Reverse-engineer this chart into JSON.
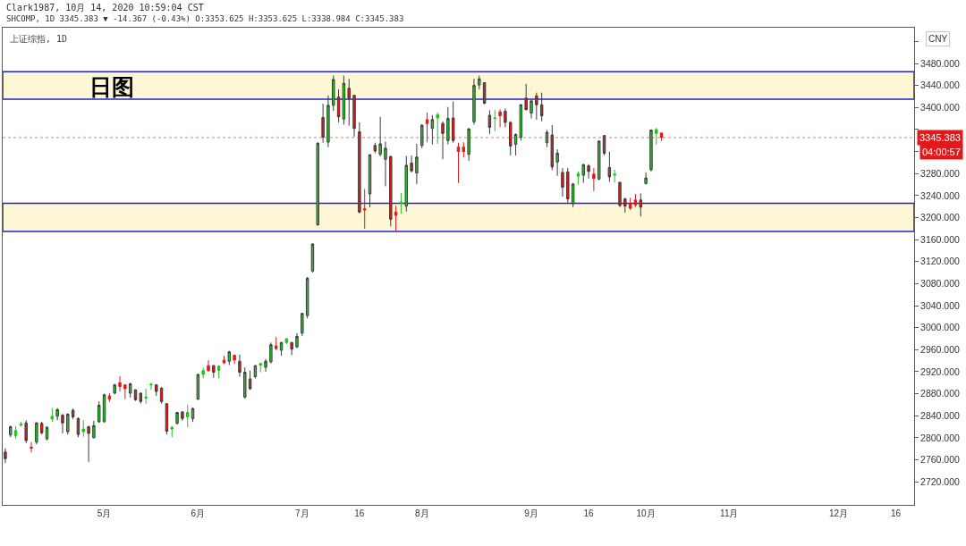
{
  "chart_data": {
    "type": "candlestick",
    "title": "Clark1987, 10月 14, 2020 10:59:04 CST",
    "subtitle": "SHCOMP, 1D 3345.383 ▼ -14.367 (-0.43%) O:3353.625 H:3353.625 L:3338.984 C:3345.383",
    "categories": [
      null,
      null,
      null,
      null,
      null,
      null,
      null,
      null,
      null,
      null,
      null,
      null,
      null,
      null,
      null,
      null,
      null,
      null,
      null,
      "5月",
      null,
      null,
      null,
      null,
      null,
      null,
      null,
      null,
      null,
      null,
      null,
      null,
      null,
      null,
      null,
      null,
      null,
      "6月",
      null,
      null,
      null,
      null,
      null,
      null,
      null,
      null,
      null,
      null,
      null,
      null,
      null,
      null,
      null,
      null,
      null,
      null,
      null,
      "7月",
      null,
      null,
      null,
      null,
      null,
      null,
      null,
      null,
      null,
      null,
      "16",
      null,
      null,
      null,
      null,
      null,
      null,
      null,
      null,
      null,
      null,
      null,
      "8月",
      null,
      null,
      null,
      null,
      null,
      null,
      null,
      null,
      null,
      null,
      null,
      null,
      null,
      null,
      null,
      null,
      null,
      null,
      null,
      null,
      "9月",
      null,
      null,
      null,
      null,
      null,
      null,
      null,
      null,
      null,
      null,
      "16",
      null,
      null,
      null,
      null,
      null,
      null,
      null,
      null,
      null,
      null,
      "10月",
      null,
      null,
      null,
      null,
      null,
      null,
      null,
      null,
      null,
      null,
      null,
      null,
      null,
      null,
      null,
      "11月",
      null,
      null,
      null,
      null,
      null,
      null,
      null,
      null,
      null,
      null,
      null,
      null,
      null,
      null,
      null,
      null,
      null,
      null,
      null,
      null,
      "12月",
      null,
      null,
      null,
      null,
      null,
      null,
      null,
      null,
      null,
      null,
      "16",
      null,
      null,
      null
    ],
    "ohlc": [
      [
        2774,
        2781,
        2754,
        2762
      ],
      [
        2805,
        2822,
        2801,
        2820
      ],
      [
        2804,
        2821,
        2798,
        2813
      ],
      [
        2823,
        2829,
        2820,
        2825
      ],
      [
        2827,
        2832,
        2790,
        2795
      ],
      [
        2783,
        2792,
        2773,
        2781
      ],
      [
        2792,
        2828,
        2788,
        2827
      ],
      [
        2826,
        2829,
        2806,
        2809
      ],
      [
        2798,
        2821,
        2795,
        2819
      ],
      [
        2834,
        2854,
        2829,
        2839
      ],
      [
        2839,
        2854,
        2832,
        2851
      ],
      [
        2841,
        2843,
        2808,
        2827
      ],
      [
        2811,
        2844,
        2806,
        2843
      ],
      [
        2850,
        2853,
        2834,
        2838
      ],
      [
        2835,
        2837,
        2801,
        2806
      ],
      [
        2811,
        2832,
        2802,
        2816
      ],
      [
        2820,
        2822,
        2756,
        2808
      ],
      [
        2800,
        2831,
        2799,
        2822
      ],
      [
        2829,
        2866,
        2827,
        2859
      ],
      [
        2829,
        2880,
        2828,
        2878
      ],
      [
        2876,
        2881,
        2865,
        2870
      ],
      [
        2881,
        2898,
        2879,
        2896
      ],
      [
        2900,
        2912,
        2884,
        2893
      ],
      [
        2896,
        2897,
        2870,
        2889
      ],
      [
        2881,
        2900,
        2873,
        2898
      ],
      [
        2887,
        2888,
        2867,
        2869
      ],
      [
        2881,
        2882,
        2862,
        2866
      ],
      [
        2872,
        2889,
        2862,
        2874
      ],
      [
        2896,
        2900,
        2887,
        2897
      ],
      [
        2896,
        2897,
        2876,
        2884
      ],
      [
        2890,
        2892,
        2862,
        2866
      ],
      [
        2862,
        2863,
        2806,
        2812
      ],
      [
        2816,
        2821,
        2801,
        2819
      ],
      [
        2826,
        2847,
        2824,
        2846
      ],
      [
        2847,
        2848,
        2831,
        2835
      ],
      [
        2838,
        2860,
        2819,
        2846
      ],
      [
        2835,
        2855,
        2829,
        2853
      ],
      [
        2870,
        2916,
        2869,
        2915
      ],
      [
        2915,
        2927,
        2908,
        2922
      ],
      [
        2931,
        2941,
        2920,
        2922
      ],
      [
        2931,
        2932,
        2909,
        2919
      ],
      [
        2922,
        2931,
        2908,
        2930
      ],
      [
        2941,
        2949,
        2934,
        2936
      ],
      [
        2939,
        2958,
        2932,
        2956
      ],
      [
        2950,
        2951,
        2934,
        2941
      ],
      [
        2939,
        2951,
        2911,
        2919
      ],
      [
        2874,
        2928,
        2871,
        2919
      ],
      [
        2907,
        2922,
        2887,
        2889
      ],
      [
        2911,
        2932,
        2908,
        2931
      ],
      [
        2932,
        2936,
        2919,
        2935
      ],
      [
        2928,
        2943,
        2920,
        2939
      ],
      [
        2938,
        2973,
        2935,
        2969
      ],
      [
        2967,
        2983,
        2959,
        2962
      ],
      [
        2959,
        2974,
        2949,
        2973
      ],
      [
        2973,
        2981,
        2970,
        2980
      ],
      [
        2973,
        2974,
        2950,
        2961
      ],
      [
        2965,
        2990,
        2963,
        2984
      ],
      [
        2990,
        3026,
        2985,
        3026
      ],
      [
        3022,
        3092,
        3017,
        3090
      ],
      [
        3103,
        3153,
        3100,
        3152
      ],
      [
        3187,
        3337,
        3185,
        3335
      ],
      [
        3382,
        3407,
        3336,
        3346
      ],
      [
        3337,
        3422,
        3328,
        3404
      ],
      [
        3404,
        3458,
        3394,
        3451
      ],
      [
        3419,
        3433,
        3373,
        3383
      ],
      [
        3379,
        3458,
        3369,
        3444
      ],
      [
        3435,
        3452,
        3367,
        3417
      ],
      [
        3422,
        3423,
        3347,
        3362
      ],
      [
        3356,
        3373,
        3208,
        3210
      ],
      [
        3216,
        3252,
        3180,
        3214
      ],
      [
        3243,
        3315,
        3219,
        3314
      ],
      [
        3331,
        3336,
        3317,
        3321
      ],
      [
        3315,
        3383,
        3311,
        3334
      ],
      [
        3306,
        3338,
        3257,
        3326
      ],
      [
        3311,
        3312,
        3184,
        3197
      ],
      [
        3210,
        3222,
        3175,
        3204
      ],
      [
        3226,
        3245,
        3207,
        3228
      ],
      [
        3221,
        3312,
        3211,
        3295
      ],
      [
        3299,
        3313,
        3282,
        3285
      ],
      [
        3281,
        3334,
        3261,
        3310
      ],
      [
        3331,
        3369,
        3326,
        3368
      ],
      [
        3378,
        3391,
        3337,
        3371
      ],
      [
        3362,
        3386,
        3333,
        3378
      ],
      [
        3381,
        3391,
        3334,
        3387
      ],
      [
        3371,
        3375,
        3306,
        3353
      ],
      [
        3340,
        3401,
        3333,
        3380
      ],
      [
        3381,
        3411,
        3336,
        3340
      ],
      [
        3328,
        3336,
        3263,
        3320
      ],
      [
        3328,
        3337,
        3309,
        3320
      ],
      [
        3315,
        3363,
        3303,
        3361
      ],
      [
        3374,
        3452,
        3369,
        3440
      ],
      [
        3441,
        3458,
        3433,
        3452
      ],
      [
        3445,
        3446,
        3406,
        3408
      ],
      [
        3386,
        3395,
        3352,
        3364
      ],
      [
        3380,
        3396,
        3357,
        3381
      ],
      [
        3392,
        3397,
        3364,
        3385
      ],
      [
        3393,
        3398,
        3364,
        3373
      ],
      [
        3373,
        3375,
        3313,
        3330
      ],
      [
        3333,
        3353,
        3313,
        3351
      ],
      [
        3346,
        3406,
        3340,
        3405
      ],
      [
        3417,
        3443,
        3395,
        3396
      ],
      [
        3390,
        3414,
        3380,
        3412
      ],
      [
        3421,
        3427,
        3378,
        3405
      ],
      [
        3405,
        3427,
        3375,
        3385
      ],
      [
        3336,
        3359,
        3328,
        3355
      ],
      [
        3350,
        3368,
        3286,
        3292
      ],
      [
        3301,
        3324,
        3276,
        3317
      ],
      [
        3282,
        3290,
        3238,
        3255
      ],
      [
        3283,
        3290,
        3227,
        3234
      ],
      [
        3225,
        3263,
        3219,
        3261
      ],
      [
        3275,
        3284,
        3260,
        3280
      ],
      [
        3277,
        3298,
        3263,
        3296
      ],
      [
        3294,
        3297,
        3271,
        3284
      ],
      [
        3279,
        3290,
        3248,
        3271
      ],
      [
        3270,
        3340,
        3268,
        3339
      ],
      [
        3349,
        3350,
        3313,
        3317
      ],
      [
        3291,
        3320,
        3265,
        3274
      ],
      [
        3277,
        3287,
        3264,
        3279
      ],
      [
        3264,
        3265,
        3219,
        3222
      ],
      [
        3234,
        3236,
        3209,
        3221
      ],
      [
        3225,
        3236,
        3214,
        3217
      ],
      [
        3232,
        3243,
        3219,
        3223
      ],
      [
        3232,
        3244,
        3202,
        3219
      ],
      [
        3262,
        3282,
        3260,
        3272
      ],
      [
        3287,
        3360,
        3284,
        3359
      ],
      [
        3353,
        3363,
        3333,
        3360
      ],
      [
        3353.625,
        3353.625,
        3338.984,
        3345.383
      ],
      null,
      null,
      null,
      null,
      null,
      null,
      null,
      null,
      null,
      null,
      null,
      null,
      null,
      null,
      null,
      null,
      null,
      null,
      null,
      null,
      null,
      null,
      null,
      null,
      null,
      null,
      null,
      null,
      null,
      null,
      null,
      null,
      null,
      null,
      null,
      null,
      null,
      null,
      null,
      null,
      null,
      null,
      null,
      null,
      null,
      null,
      null,
      null
    ],
    "colors": [
      "#e3181b",
      "#21c41f",
      "#21c41f",
      "#21c41f",
      "#e3181b",
      "#e3181b",
      "#21c41f",
      "#e3181b",
      "#21c41f",
      "#21c41f",
      "#21c41f",
      "#e3181b",
      "#21c41f",
      "#e3181b",
      "#e3181b",
      "#21c41f",
      "#e3181b",
      "#21c41f",
      "#21c41f",
      "#21c41f",
      "#e3181b",
      "#21c41f",
      "#e3181b",
      "#e3181b",
      "#21c41f",
      "#e3181b",
      "#e3181b",
      "#21c41f",
      "#21c41f",
      "#e3181b",
      "#e3181b",
      "#e3181b",
      "#21c41f",
      "#21c41f",
      "#e3181b",
      "#21c41f",
      "#21c41f",
      "#21c41f",
      "#21c41f",
      "#e3181b",
      "#e3181b",
      "#21c41f",
      "#e3181b",
      "#21c41f",
      "#e3181b",
      "#e3181b",
      "#21c41f",
      "#e3181b",
      "#21c41f",
      "#21c41f",
      "#21c41f",
      "#21c41f",
      "#e3181b",
      "#21c41f",
      "#21c41f",
      "#e3181b",
      "#21c41f",
      "#21c41f",
      "#21c41f",
      "#21c41f",
      "#21c41f",
      "#e3181b",
      "#21c41f",
      "#21c41f",
      "#e3181b",
      "#21c41f",
      "#e3181b",
      "#e3181b",
      "#e3181b",
      "#e3181b",
      "#21c41f",
      "#e3181b",
      "#21c41f",
      "#21c41f",
      "#e3181b",
      "#e3181b",
      "#21c41f",
      "#21c41f",
      "#e3181b",
      "#21c41f",
      "#21c41f",
      "#e3181b",
      "#21c41f",
      "#21c41f",
      "#e3181b",
      "#21c41f",
      "#e3181b",
      "#e3181b",
      "#e3181b",
      "#21c41f",
      "#21c41f",
      "#21c41f",
      "#e3181b",
      "#e3181b",
      "#21c41f",
      "#e3181b",
      "#e3181b",
      "#e3181b",
      "#21c41f",
      "#21c41f",
      "#e3181b",
      "#21c41f",
      "#e3181b",
      "#e3181b",
      "#21c41f",
      "#e3181b",
      "#21c41f",
      "#e3181b",
      "#e3181b",
      "#21c41f",
      "#21c41f",
      "#21c41f",
      "#e3181b",
      "#e3181b",
      "#21c41f",
      "#e3181b",
      "#e3181b",
      "#21c41f",
      "#e3181b",
      "#e3181b",
      "#e3181b",
      "#e3181b",
      "#e3181b",
      "#21c41f",
      "#21c41f",
      "#21c41f",
      "#e3181b",
      null,
      null,
      null,
      null,
      null,
      null,
      null,
      null,
      null,
      null,
      null,
      null,
      null,
      null,
      null,
      null,
      null,
      null,
      null,
      null,
      null,
      null,
      null,
      null,
      null,
      null,
      null,
      null,
      null,
      null,
      null,
      null,
      null,
      null,
      null,
      null,
      null,
      null,
      null,
      null,
      null,
      null,
      null,
      null,
      null,
      null,
      null,
      null
    ],
    "ylim": [
      2678,
      3545
    ],
    "yticks": [
      {
        "value": 2720,
        "label": "2720.000"
      },
      {
        "value": 2760,
        "label": "2760.000"
      },
      {
        "value": 2800,
        "label": "2800.000"
      },
      {
        "value": 2840,
        "label": "2840.000"
      },
      {
        "value": 2880,
        "label": "2880.000"
      },
      {
        "value": 2920,
        "label": "2920.000"
      },
      {
        "value": 2960,
        "label": "2960.000"
      },
      {
        "value": 3000,
        "label": "3000.000"
      },
      {
        "value": 3040,
        "label": "3040.000"
      },
      {
        "value": 3080,
        "label": "3080.000"
      },
      {
        "value": 3120,
        "label": "3120.000"
      },
      {
        "value": 3160,
        "label": "3160.000"
      },
      {
        "value": 3200,
        "label": "3200.000"
      },
      {
        "value": 3240,
        "label": "3240.000"
      },
      {
        "value": 3280,
        "label": "3280.000"
      },
      {
        "value": 3320,
        "label": null
      },
      {
        "value": 3360,
        "label": null
      },
      {
        "value": 3400,
        "label": "3400.000"
      },
      {
        "value": 3440,
        "label": "3440.000"
      },
      {
        "value": 3480,
        "label": "3480.000"
      },
      {
        "value": 3520,
        "label": null
      }
    ],
    "ref_lines": [
      {
        "axis": "y",
        "value": 3345.383,
        "label": "3345.383",
        "color": "#e3181b",
        "line_style": "dotted"
      }
    ],
    "bands": [
      {
        "axis": "y",
        "from": 3415,
        "to": 3465,
        "color": "#fdf7d6"
      },
      {
        "axis": "y",
        "from": 3175,
        "to": 3226,
        "color": "#fdf7d6"
      }
    ],
    "annotations": [
      "上证综指, 1D",
      "日图",
      "CNY",
      "04:00:57"
    ]
  }
}
